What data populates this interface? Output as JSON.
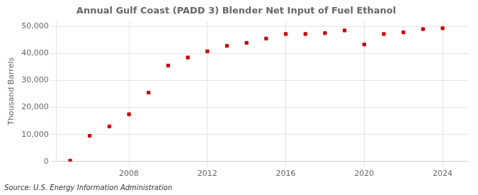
{
  "chart_data": {
    "type": "scatter",
    "title": "Annual Gulf Coast (PADD 3) Blender Net Input of Fuel Ethanol",
    "ylabel": "Thousand Barrels",
    "annotation": "Source: U.S. Energy Information Administration",
    "x": [
      2005,
      2006,
      2007,
      2008,
      2009,
      2010,
      2011,
      2012,
      2013,
      2014,
      2015,
      2016,
      2017,
      2018,
      2019,
      2020,
      2021,
      2022,
      2023,
      2024
    ],
    "values": [
      300,
      9500,
      13000,
      17500,
      25500,
      35500,
      38500,
      40800,
      42800,
      43900,
      45500,
      47200,
      47200,
      47500,
      48500,
      43300,
      47200,
      47800,
      49000,
      49300
    ],
    "color": "#cc0000",
    "marker": "square",
    "xlim": [
      2004.3,
      2025.3
    ],
    "xticks": [
      2008,
      2012,
      2016,
      2020,
      2024
    ],
    "ylim": [
      0,
      52000
    ],
    "yticks": [
      0,
      {
        "value": 10000,
        "label": "10,000"
      },
      {
        "value": 20000,
        "label": "20,000"
      },
      {
        "value": 30000,
        "label": "30,000"
      },
      {
        "value": 40000,
        "label": "40,000"
      },
      {
        "value": 50000,
        "label": "50,000"
      }
    ],
    "grid": true
  }
}
